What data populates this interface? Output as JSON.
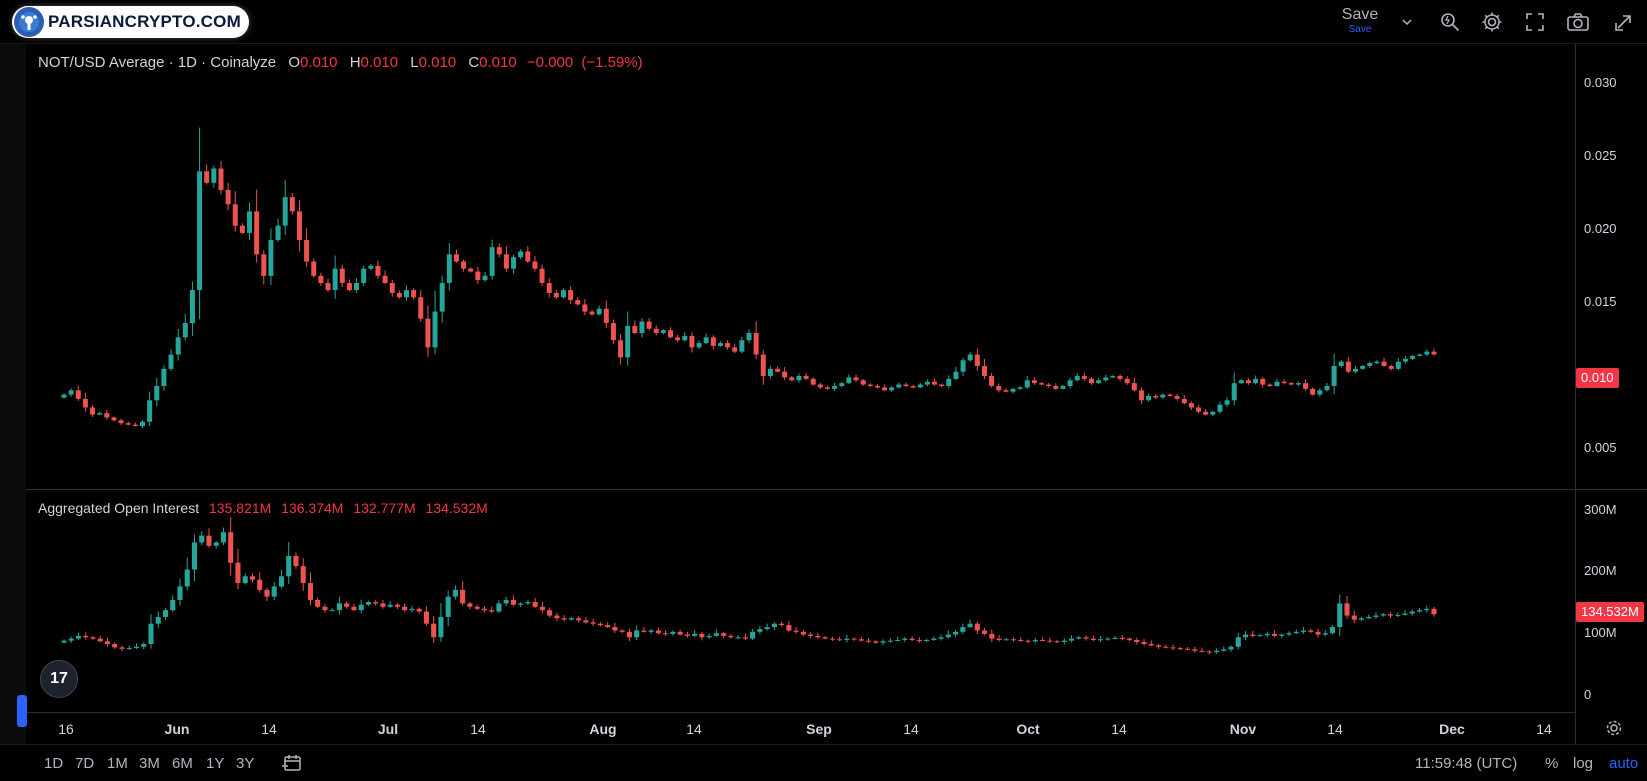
{
  "branding": {
    "logo_text": "PARSIANCRYPTO.COM"
  },
  "toolbar": {
    "save_label": "Save",
    "save_sub": "Save"
  },
  "main_legend": {
    "symbol": "NOT/USD Average · 1D · Coinalyze",
    "open_label": "O",
    "open": "0.010",
    "high_label": "H",
    "high": "0.010",
    "low_label": "L",
    "low": "0.010",
    "close_label": "C",
    "close": "0.010",
    "change": "−0.000",
    "change_pct": "(−1.59%)"
  },
  "oi_legend": {
    "title": "Aggregated Open Interest",
    "v1": "135.821M",
    "v2": "136.374M",
    "v3": "132.777M",
    "v4": "134.532M"
  },
  "price_axis": {
    "labels": [
      "0.030",
      "0.025",
      "0.020",
      "0.015",
      "0.010",
      "0.005"
    ],
    "last_price": "0.010"
  },
  "oi_axis": {
    "labels": [
      "300M",
      "200M",
      "100M",
      "0"
    ],
    "last_value": "134.532M"
  },
  "time_axis": {
    "labels": [
      "16",
      "Jun",
      "14",
      "Jul",
      "14",
      "Aug",
      "14",
      "Sep",
      "14",
      "Oct",
      "14",
      "Nov",
      "14",
      "Dec",
      "14"
    ]
  },
  "bottom_bar": {
    "ranges": [
      "1D",
      "7D",
      "1M",
      "3M",
      "6M",
      "1Y",
      "3Y"
    ],
    "clock": "11:59:48 (UTC)",
    "percent": "%",
    "log": "log",
    "auto": "auto"
  },
  "badge": {
    "text": "17"
  },
  "colors": {
    "up": "#26a69a",
    "down": "#ef5350",
    "background": "#000000",
    "accent": "#2962ff"
  },
  "chart_data": [
    {
      "type": "candlestick",
      "title": "NOT/USD Average · 1D · Coinalyze",
      "y_axis_labels": [
        0.03,
        0.025,
        0.02,
        0.015,
        0.01,
        0.005
      ],
      "ylim": [
        0.002,
        0.031
      ],
      "x_start": "2024-05-16",
      "x_end": "2024-12-08",
      "close": [
        0.0072,
        0.0075,
        0.0069,
        0.0063,
        0.0058,
        0.0059,
        0.0056,
        0.0054,
        0.0052,
        0.0051,
        0.005,
        0.0053,
        0.0068,
        0.0078,
        0.009,
        0.01,
        0.0112,
        0.0122,
        0.0145,
        0.0228,
        0.022,
        0.023,
        0.0215,
        0.0205,
        0.019,
        0.0185,
        0.02,
        0.017,
        0.0155,
        0.018,
        0.019,
        0.021,
        0.02,
        0.018,
        0.0165,
        0.0155,
        0.015,
        0.0145,
        0.016,
        0.015,
        0.0145,
        0.015,
        0.016,
        0.0162,
        0.0155,
        0.015,
        0.0143,
        0.014,
        0.0145,
        0.014,
        0.0125,
        0.0105,
        0.013,
        0.015,
        0.017,
        0.0165,
        0.016,
        0.0158,
        0.0152,
        0.0155,
        0.0175,
        0.017,
        0.016,
        0.0168,
        0.0172,
        0.0165,
        0.016,
        0.015,
        0.0143,
        0.014,
        0.0145,
        0.0138,
        0.0135,
        0.013,
        0.0128,
        0.0132,
        0.0122,
        0.011,
        0.0098,
        0.012,
        0.0115,
        0.0123,
        0.0118,
        0.0115,
        0.0117,
        0.0112,
        0.011,
        0.0113,
        0.0105,
        0.0108,
        0.0112,
        0.0106,
        0.0108,
        0.0105,
        0.0102,
        0.011,
        0.0115,
        0.01,
        0.0085,
        0.009,
        0.0088,
        0.0084,
        0.0082,
        0.0085,
        0.0083,
        0.0079,
        0.0077,
        0.0076,
        0.0078,
        0.008,
        0.0084,
        0.0082,
        0.0079,
        0.0078,
        0.0077,
        0.0075,
        0.0077,
        0.0079,
        0.0078,
        0.0077,
        0.0079,
        0.0081,
        0.0079,
        0.0078,
        0.0083,
        0.0088,
        0.0096,
        0.01,
        0.0092,
        0.0085,
        0.0078,
        0.0075,
        0.0074,
        0.0076,
        0.0077,
        0.0082,
        0.008,
        0.0079,
        0.0078,
        0.0076,
        0.0078,
        0.0082,
        0.0085,
        0.0083,
        0.008,
        0.0082,
        0.0084,
        0.0085,
        0.0083,
        0.008,
        0.0075,
        0.0068,
        0.0071,
        0.007,
        0.0072,
        0.0071,
        0.0069,
        0.0066,
        0.0063,
        0.006,
        0.0058,
        0.006,
        0.0065,
        0.0068,
        0.008,
        0.0082,
        0.008,
        0.0083,
        0.0079,
        0.0078,
        0.0081,
        0.008,
        0.0079,
        0.008,
        0.0076,
        0.0072,
        0.0075,
        0.0078,
        0.0092,
        0.0095,
        0.0088,
        0.009,
        0.0092,
        0.0094,
        0.0095,
        0.0092,
        0.009,
        0.0095,
        0.0097,
        0.0099,
        0.01,
        0.0102,
        0.01
      ]
    },
    {
      "type": "candlestick",
      "title": "Aggregated Open Interest",
      "y_axis_labels": [
        "300M",
        "200M",
        "100M",
        "0"
      ],
      "ylim": [
        0,
        310
      ],
      "close": [
        95,
        98,
        102,
        100,
        98,
        94,
        90,
        85,
        83,
        84,
        86,
        90,
        120,
        130,
        140,
        155,
        175,
        200,
        240,
        250,
        235,
        240,
        255,
        210,
        180,
        190,
        185,
        170,
        160,
        175,
        190,
        220,
        205,
        180,
        155,
        145,
        140,
        140,
        150,
        145,
        140,
        148,
        152,
        150,
        145,
        148,
        145,
        140,
        142,
        138,
        120,
        100,
        130,
        160,
        170,
        150,
        145,
        142,
        140,
        138,
        150,
        155,
        148,
        150,
        152,
        145,
        140,
        132,
        128,
        126,
        128,
        125,
        122,
        120,
        118,
        115,
        110,
        108,
        100,
        110,
        108,
        110,
        106,
        105,
        108,
        104,
        102,
        105,
        100,
        102,
        106,
        102,
        100,
        100,
        98,
        108,
        112,
        115,
        120,
        118,
        110,
        108,
        104,
        102,
        100,
        98,
        97,
        96,
        98,
        97,
        95,
        94,
        92,
        94,
        95,
        96,
        98,
        96,
        95,
        96,
        98,
        100,
        104,
        108,
        115,
        120,
        110,
        105,
        98,
        96,
        97,
        96,
        95,
        94,
        96,
        95,
        94,
        93,
        95,
        98,
        100,
        98,
        96,
        97,
        98,
        99,
        98,
        96,
        93,
        90,
        88,
        86,
        85,
        84,
        83,
        82,
        80,
        79,
        78,
        80,
        82,
        86,
        100,
        104,
        102,
        103,
        105,
        102,
        104,
        106,
        108,
        110,
        108,
        104,
        106,
        115,
        150,
        132,
        126,
        128,
        130,
        132,
        134,
        132,
        133,
        135,
        138,
        140,
        142,
        134
      ]
    }
  ]
}
